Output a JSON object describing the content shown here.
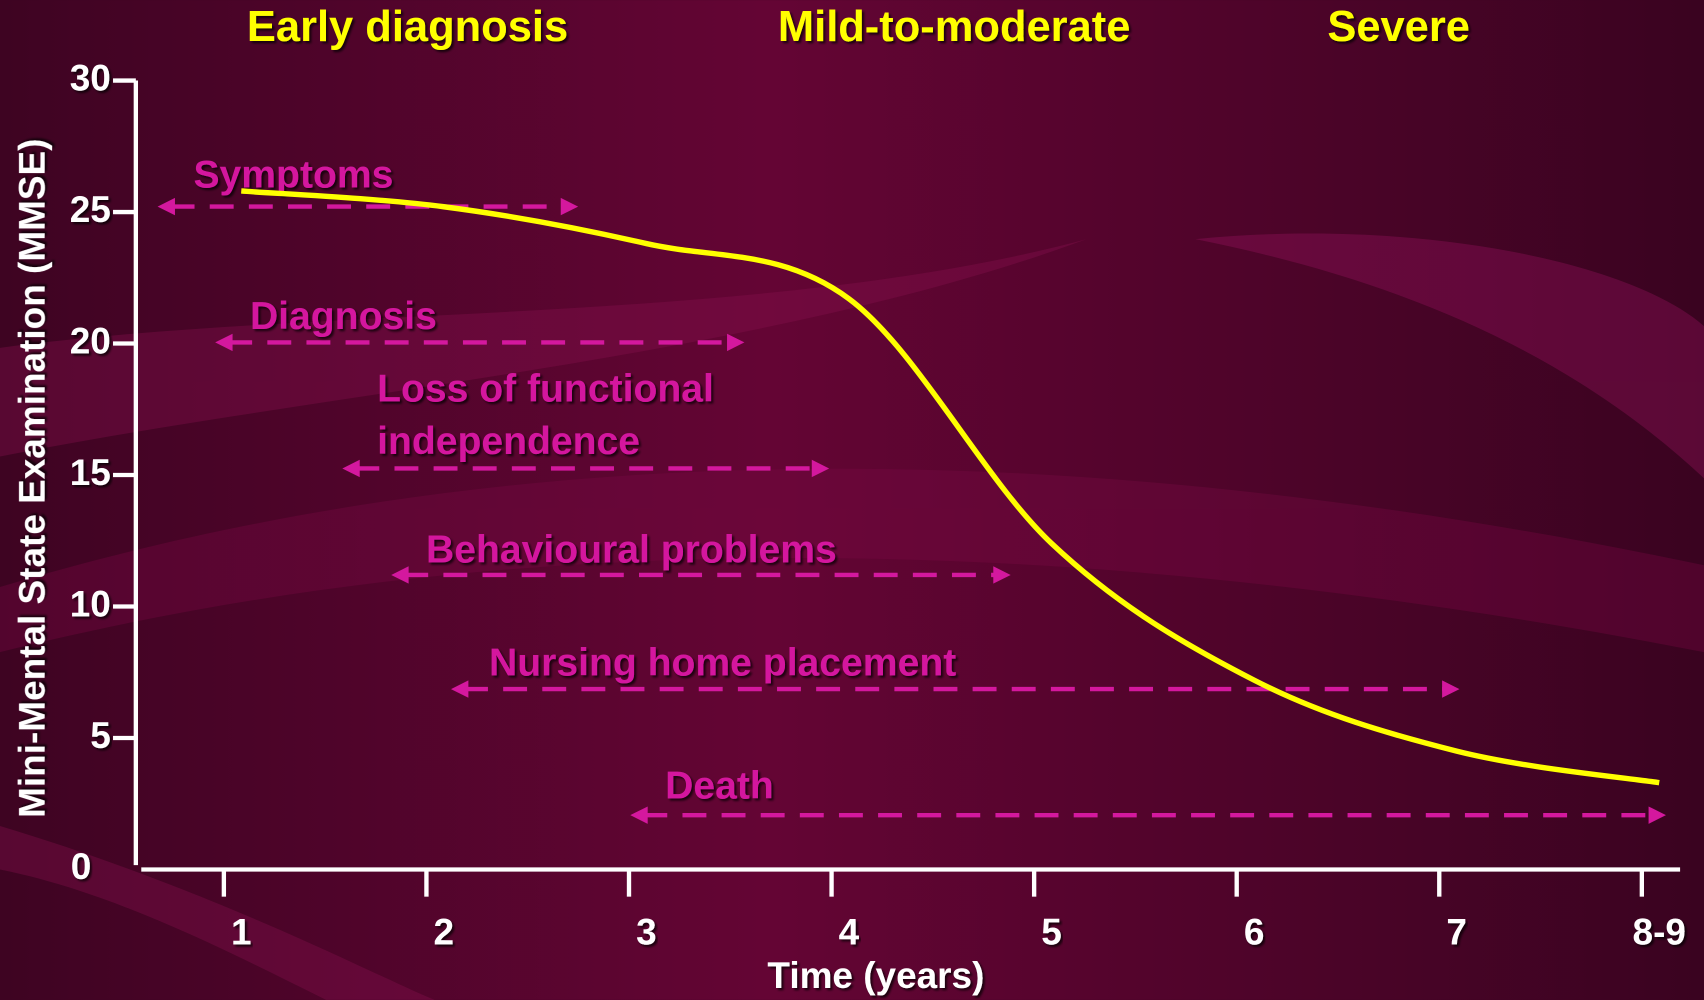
{
  "chart_data": {
    "type": "line",
    "stages": [
      "Early diagnosis",
      "Mild-to-moderate",
      "Severe"
    ],
    "y_label": "Mini-Mental State Examination (MMSE)",
    "x_label": "Time (years)",
    "categories": [
      "1",
      "2",
      "3",
      "4",
      "5",
      "6",
      "7",
      "8-9"
    ],
    "series": [
      {
        "color": "#ffff00",
        "values": [
          25.8,
          25.2,
          23.8,
          21.7,
          12.4,
          7.2,
          4.5,
          3.3
        ]
      }
    ],
    "ylim": [
      0,
      30
    ],
    "yticks": [
      0,
      5,
      10,
      15,
      20,
      25,
      30
    ],
    "annotations": [
      [
        "Symptoms"
      ],
      [
        "Diagnosis"
      ],
      [
        "Loss of functional",
        "independence"
      ],
      [
        "Behavioural problems"
      ],
      [
        "Nursing home placement"
      ],
      [
        "Death"
      ]
    ],
    "annotation_color": "#d4189e"
  }
}
